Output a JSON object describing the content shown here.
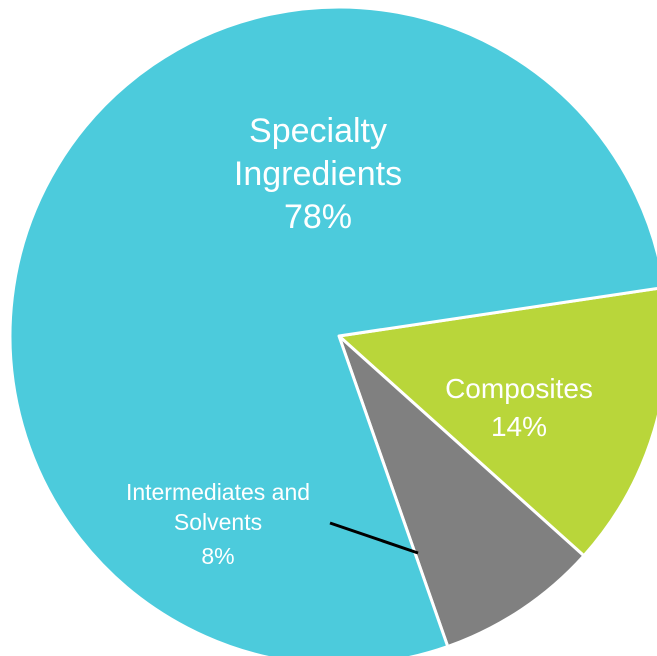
{
  "chart_data": {
    "type": "pie",
    "slices": [
      {
        "label_lines": [
          "Specialty",
          "Ingredients"
        ],
        "value_label": "78%",
        "value": 78,
        "color": "#4ccbdc"
      },
      {
        "label_lines": [
          "Composites"
        ],
        "value_label": "14%",
        "value": 14,
        "color": "#b9d63a"
      },
      {
        "label_lines": [
          "Intermediates and",
          "Solvents"
        ],
        "value_label": "8%",
        "value": 8,
        "color": "#808080"
      }
    ],
    "title": "",
    "legend": "none",
    "slice_border_color": "#ffffff",
    "leader_line_color": "#000000"
  }
}
